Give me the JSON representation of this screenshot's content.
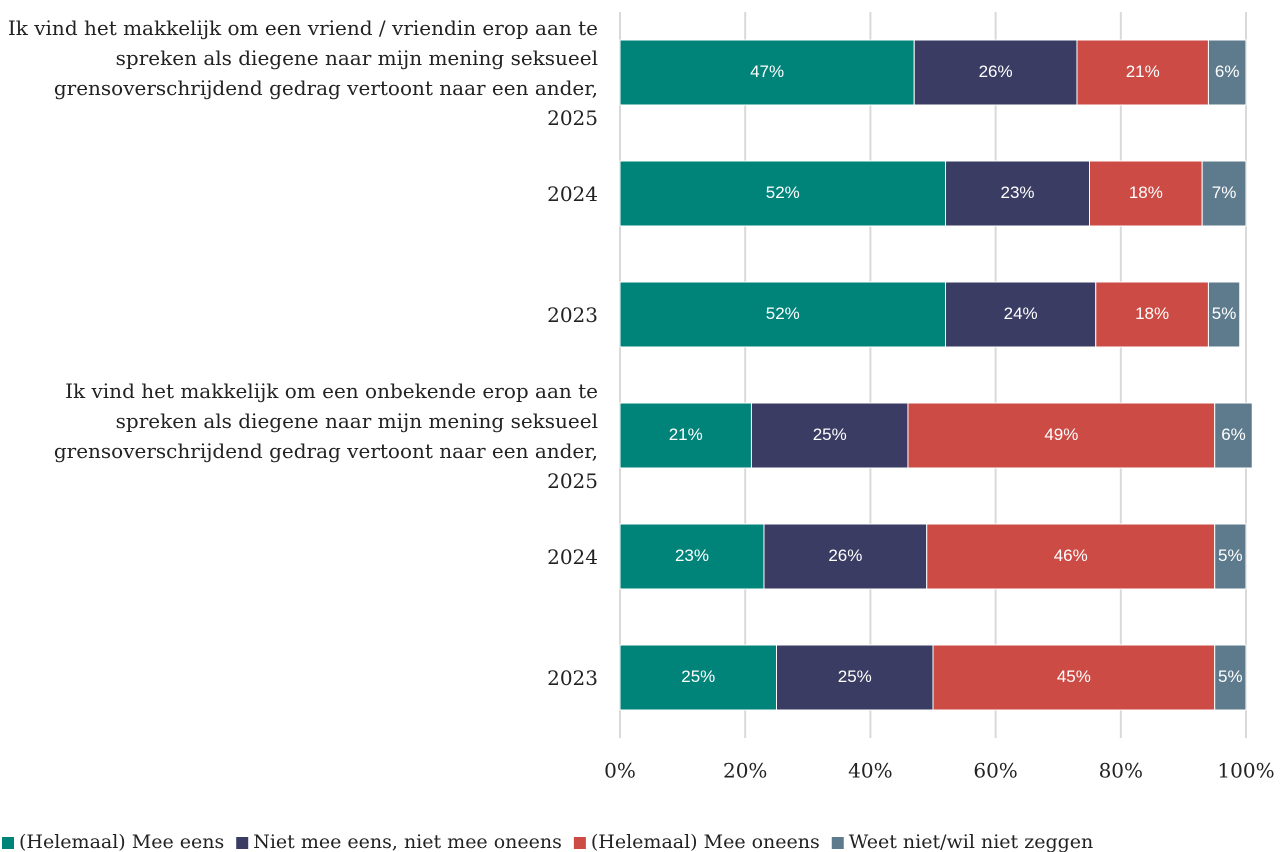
{
  "chart_data": {
    "type": "stacked_barh",
    "categories": [
      "Ik vind het makkelijk om een vriend / vriendin erop aan te spreken als diegene naar mijn mening seksueel grensoverschrijdend gedrag vertoont naar een ander, 2025",
      "2024",
      "2023",
      "Ik vind het makkelijk om een onbekende erop aan te spreken als diegene naar mijn mening seksueel grensoverschrijdend gedrag vertoont naar een ander, 2025",
      "2024",
      "2023"
    ],
    "series": [
      {
        "name": "(Helemaal) Mee eens",
        "color": "#00847a",
        "values": [
          47,
          52,
          52,
          21,
          23,
          25
        ],
        "value_labels": [
          "47%",
          "52%",
          "52%",
          "21%",
          "23%",
          "25%"
        ]
      },
      {
        "name": "Niet mee eens, niet mee oneens",
        "color": "#3a3c63",
        "values": [
          26,
          23,
          24,
          25,
          26,
          25
        ],
        "value_labels": [
          "26%",
          "23%",
          "24%",
          "25%",
          "26%",
          "25%"
        ]
      },
      {
        "name": "(Helemaal) Mee oneens",
        "color": "#cc4b45",
        "values": [
          21,
          18,
          18,
          49,
          46,
          45
        ],
        "value_labels": [
          "21%",
          "18%",
          "18%",
          "49%",
          "46%",
          "45%"
        ]
      },
      {
        "name": "Weet niet/wil niet zeggen",
        "color": "#5e7b8e",
        "values": [
          6,
          7,
          5,
          6,
          5,
          5
        ],
        "value_labels": [
          "6%",
          "7%",
          "5%",
          "6%",
          "5%",
          "5%"
        ]
      }
    ],
    "xlim": [
      0,
      100
    ],
    "xticks": [
      {
        "value": 0,
        "label": "0%"
      },
      {
        "value": 20,
        "label": "20%"
      },
      {
        "value": 40,
        "label": "40%"
      },
      {
        "value": 60,
        "label": "60%"
      },
      {
        "value": 80,
        "label": "80%"
      },
      {
        "value": 100,
        "label": "100%"
      }
    ],
    "grid": true,
    "legend": "bottom"
  }
}
